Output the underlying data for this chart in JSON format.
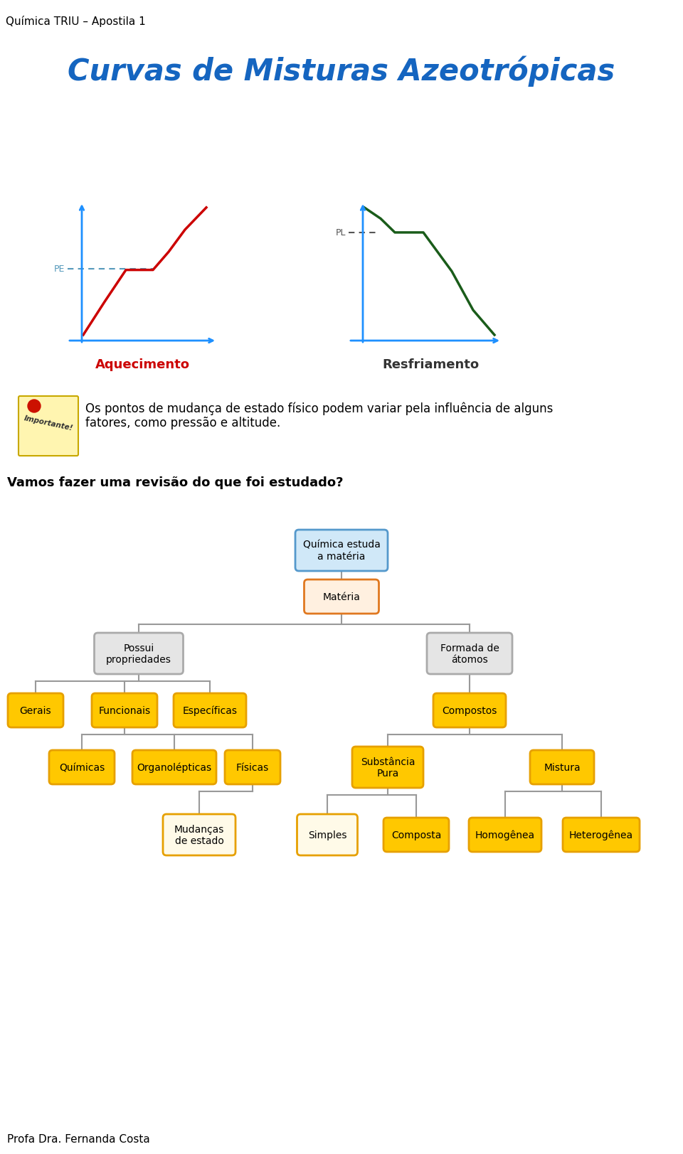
{
  "header_text": "Química TRIU – Apostila 1",
  "title_display": "Curvas de Misturas Azeotrópicas",
  "note_text": "Os pontos de mudança de estado físico podem variar pela influência de alguns\nfatores, como pressão e altitude.",
  "section_text": "Vamos fazer uma revisão do que foi estudado?",
  "footer_text": "Profa Dra. Fernanda Costa",
  "bg_color": "#ffffff",
  "graph1_label": "Aquecimento",
  "graph2_label": "Resfriamento",
  "pe_label": "PE",
  "pl_label": "PL",
  "title_color": "#1565C0",
  "graph1_color": "#cc0000",
  "graph2_color": "#1a5c1a"
}
